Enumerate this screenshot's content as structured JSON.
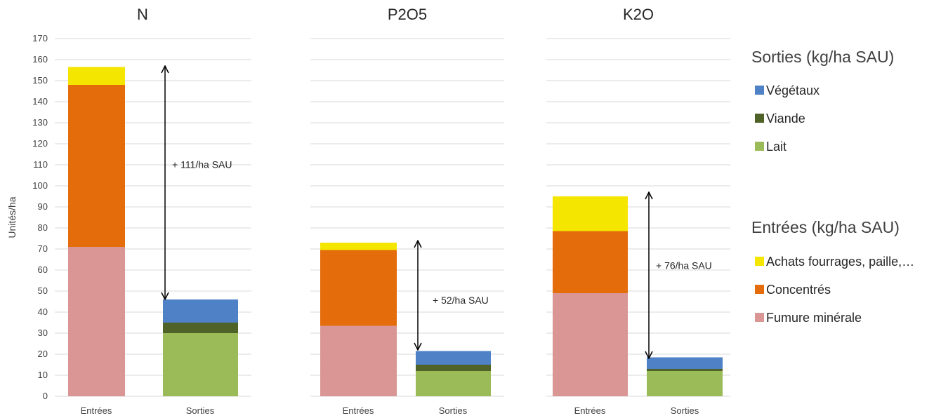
{
  "chart_data": {
    "type": "bar",
    "stacked": true,
    "ylabel": "Unités/ha",
    "ylim": [
      0,
      170
    ],
    "yticks": [
      0,
      10,
      20,
      30,
      40,
      50,
      60,
      70,
      80,
      90,
      100,
      110,
      120,
      130,
      140,
      150,
      160,
      170
    ],
    "grid": true,
    "categories": [
      "Entrées",
      "Sorties"
    ],
    "panels": [
      {
        "title": "N",
        "entrees": {
          "Fumure minérale": 71,
          "Concentrés": 77,
          "Achats fourrages, paille,…": 8.5
        },
        "sorties": {
          "Lait": 30,
          "Viande": 5,
          "Végétaux": 11
        },
        "annotation": "+ 111/ha SAU",
        "arrow": [
          46,
          157
        ]
      },
      {
        "title": "P2O5",
        "entrees": {
          "Fumure minérale": 33.5,
          "Concentrés": 36,
          "Achats fourrages, paille,…": 3.5
        },
        "sorties": {
          "Lait": 12,
          "Viande": 3,
          "Végétaux": 6.5
        },
        "annotation": "+ 52/ha SAU",
        "arrow": [
          22,
          74
        ]
      },
      {
        "title": "K2O",
        "entrees": {
          "Fumure minérale": 49,
          "Concentrés": 29.5,
          "Achats fourrages, paille,…": 16.5
        },
        "sorties": {
          "Lait": 12,
          "Viande": 1,
          "Végétaux": 5.5
        },
        "annotation": "+ 76/ha SAU",
        "arrow": [
          18,
          97
        ]
      }
    ],
    "legend": {
      "placement": "right",
      "sorties_title": "Sorties (kg/ha SAU)",
      "sorties": [
        {
          "name": "Végétaux",
          "color": "#4f81c7"
        },
        {
          "name": "Viande",
          "color": "#4f6228"
        },
        {
          "name": "Lait",
          "color": "#9bbb59"
        }
      ],
      "entrees_title": "Entrées (kg/ha SAU)",
      "entrees": [
        {
          "name": "Achats fourrages, paille,…",
          "color": "#f5e600"
        },
        {
          "name": "Concentrés",
          "color": "#e46c0a"
        },
        {
          "name": "Fumure minérale",
          "color": "#d99694"
        }
      ]
    }
  }
}
